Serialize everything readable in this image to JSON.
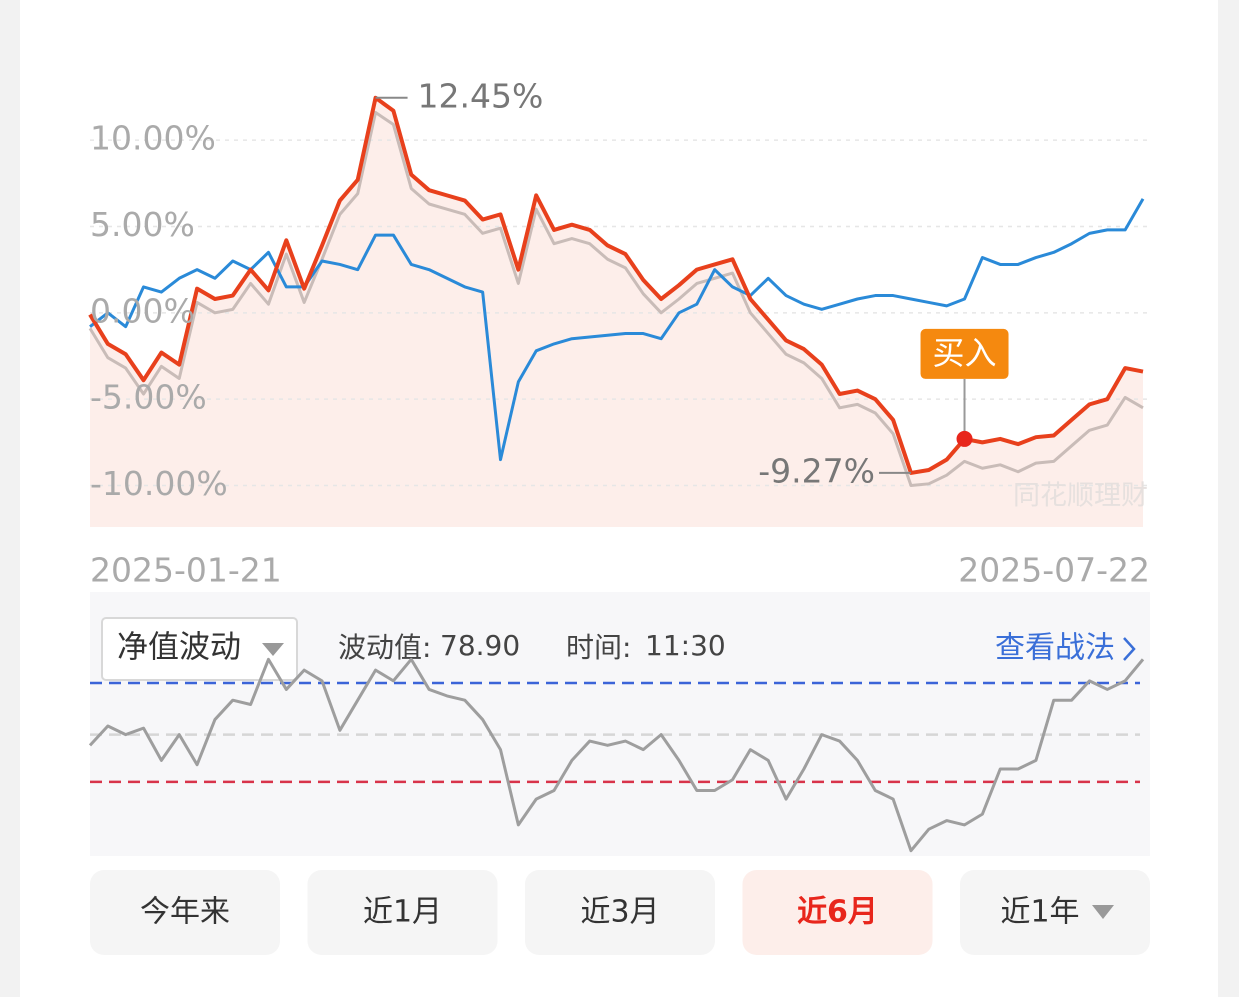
{
  "chart_data": {
    "type": "line",
    "categories": [
      "2025-01-21",
      null,
      null,
      null,
      null,
      null,
      null,
      null,
      null,
      null,
      null,
      null,
      null,
      null,
      null,
      null,
      null,
      null,
      null,
      null,
      null,
      null,
      null,
      null,
      null,
      null,
      null,
      null,
      null,
      null,
      null,
      null,
      null,
      null,
      null,
      null,
      null,
      null,
      null,
      null,
      null,
      null,
      null,
      null,
      null,
      null,
      null,
      null,
      null,
      null,
      null,
      null,
      null,
      null,
      null,
      null,
      null,
      null,
      null,
      "2025-07-22"
    ],
    "ylim": [
      -12.4,
      12.9
    ],
    "yticks": [
      {
        "value": 10,
        "label": "10.00%"
      },
      {
        "value": 5,
        "label": "5.00%"
      },
      {
        "value": 0,
        "label": "0.00%"
      },
      {
        "value": -5,
        "label": "-5.00%"
      },
      {
        "value": -10,
        "label": "-10.00%"
      }
    ],
    "grid": true,
    "series": [
      {
        "color": "#c9bcb8",
        "values": [
          -0.9,
          -2.6,
          -3.2,
          -4.7,
          -3.1,
          -3.8,
          0.6,
          0.0,
          0.2,
          1.7,
          0.5,
          3.4,
          0.6,
          3.1,
          5.7,
          6.9,
          11.6,
          10.9,
          7.2,
          6.3,
          6.0,
          5.7,
          4.6,
          4.9,
          1.7,
          6.0,
          4.0,
          4.3,
          4.0,
          3.1,
          2.6,
          1.1,
          0.0,
          0.8,
          1.7,
          2.0,
          2.3,
          0.0,
          -1.2,
          -2.4,
          -2.9,
          -3.8,
          -5.5,
          -5.3,
          -5.8,
          -7.0,
          -10.0,
          -9.9,
          -9.4,
          -8.6,
          -9.0,
          -8.8,
          -9.2,
          -8.7,
          -8.6,
          -7.7,
          -6.8,
          -6.5,
          -4.9,
          -5.5
        ]
      },
      {
        "color": "#2a8ad8",
        "values": [
          -0.8,
          0,
          -0.8,
          1.5,
          1.2,
          2.0,
          2.5,
          2.0,
          3.0,
          2.5,
          3.5,
          1.5,
          1.5,
          3.0,
          2.8,
          2.5,
          4.5,
          4.5,
          2.8,
          2.5,
          2.0,
          1.5,
          1.2,
          -8.5,
          -4.0,
          -2.2,
          -1.8,
          -1.5,
          -1.4,
          -1.3,
          -1.2,
          -1.2,
          -1.5,
          0.0,
          0.5,
          2.5,
          1.5,
          1.0,
          2.0,
          1.0,
          0.5,
          0.2,
          0.5,
          0.8,
          1.0,
          1.0,
          0.8,
          0.6,
          0.4,
          0.8,
          3.2,
          2.8,
          2.8,
          3.2,
          3.5,
          4.0,
          4.6,
          4.8,
          4.8,
          6.6
        ]
      },
      {
        "color": "#e8401c",
        "area": "#fdeeea",
        "values": [
          -0.1,
          -1.8,
          -2.4,
          -3.9,
          -2.3,
          -3.0,
          1.4,
          0.8,
          1.0,
          2.5,
          1.3,
          4.2,
          1.4,
          3.9,
          6.5,
          7.7,
          12.45,
          11.7,
          8.0,
          7.1,
          6.8,
          6.5,
          5.4,
          5.7,
          2.5,
          6.8,
          4.8,
          5.1,
          4.8,
          3.9,
          3.4,
          1.9,
          0.8,
          1.6,
          2.5,
          2.8,
          3.1,
          0.8,
          -0.4,
          -1.6,
          -2.1,
          -3.0,
          -4.7,
          -4.5,
          -5.0,
          -6.2,
          -9.27,
          -9.1,
          -8.5,
          -7.3,
          -7.5,
          -7.3,
          -7.6,
          -7.2,
          -7.1,
          -6.2,
          -5.3,
          -5.0,
          -3.2,
          -3.4
        ]
      }
    ],
    "annotations": [
      {
        "text": "12.45%",
        "at": 16,
        "kind": "max"
      },
      {
        "text": "-9.27%",
        "at": 46,
        "kind": "min"
      },
      {
        "text": "买入",
        "at": 49,
        "kind": "buy"
      }
    ],
    "watermark": "同花顺理财"
  },
  "volatility": {
    "type": "line",
    "selector": "净值波动",
    "value_label": "波动值:",
    "value": "78.90",
    "time_label": "时间:",
    "time": "11:30",
    "link": "查看战法",
    "ylim": [
      0,
      100
    ],
    "levels": [
      {
        "value": 80,
        "color": "#3b64d8"
      },
      {
        "value": 56,
        "color": "#d6d6d6"
      },
      {
        "value": 34,
        "color": "#d8334a"
      }
    ],
    "color": "#9e9e9e",
    "values": [
      51,
      60,
      56,
      59,
      44,
      56,
      42,
      63,
      72,
      70,
      91,
      77,
      86,
      81,
      58,
      72,
      86,
      81,
      91,
      77,
      74,
      72,
      63,
      49,
      14,
      26,
      30,
      44,
      53,
      51,
      53,
      49,
      56,
      44,
      30,
      30,
      35,
      49,
      44,
      26,
      40,
      56,
      53,
      44,
      30,
      26,
      2,
      12,
      16,
      14,
      19,
      40,
      40,
      44,
      72,
      72,
      81,
      77,
      81,
      91
    ]
  },
  "tabs": {
    "items": [
      "今年来",
      "近1月",
      "近3月",
      "近6月",
      "近1年"
    ],
    "selected": 3
  }
}
